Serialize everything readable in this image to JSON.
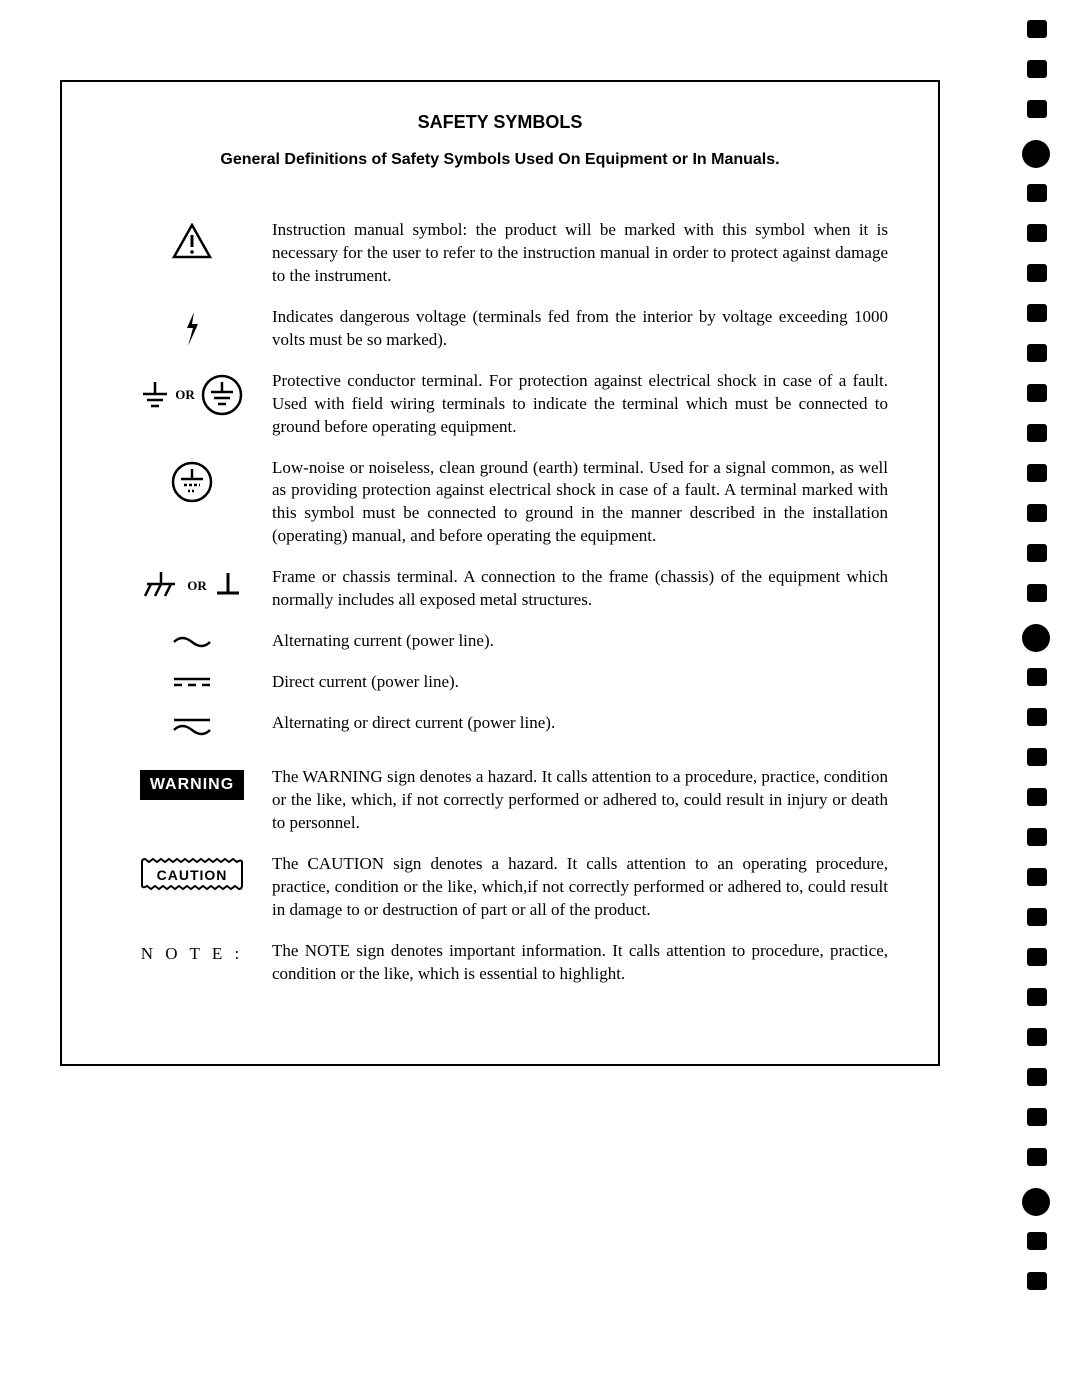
{
  "title": "SAFETY SYMBOLS",
  "subtitle": "General Definitions of Safety Symbols Used On Equipment or In Manuals.",
  "rows": [
    {
      "desc": "Instruction manual symbol: the product will be marked with this symbol when it is necessary for the user to refer to the instruction manual in order to protect against damage to the instrument."
    },
    {
      "desc": "Indicates dangerous voltage (terminals fed from the interior by voltage exceeding 1000 volts must be so marked)."
    },
    {
      "desc": "Protective conductor terminal. For protection against electrical shock in case of a fault. Used with field wiring terminals to indicate the terminal which must be connected to ground before operating equipment."
    },
    {
      "desc": "Low-noise or noiseless, clean ground (earth) terminal. Used for a signal common, as well as providing protection against electrical shock in case of a fault. A terminal marked with this symbol must be connected to ground in the manner described in the installation (operating) manual, and before operating the equipment."
    },
    {
      "desc": "Frame or chassis terminal. A connection to the frame (chassis) of the equipment which normally includes all exposed metal structures."
    },
    {
      "desc": "Alternating current (power line)."
    },
    {
      "desc": "Direct current (power line)."
    },
    {
      "desc": "Alternating or direct current (power line)."
    },
    {
      "desc": "The WARNING sign denotes a hazard. It calls attention to a procedure, practice, condition or the like, which, if not correctly performed or adhered to, could result in injury or death to personnel."
    },
    {
      "desc": "The CAUTION sign denotes a hazard. It calls attention to an operating procedure, practice, condition or the like, which,if not correctly performed or adhered to, could result in damage to or destruction of part or all of the product."
    },
    {
      "desc": "The NOTE sign denotes important information. It calls attention to procedure, practice, condition or the like, which is essential to highlight."
    }
  ],
  "labels": {
    "or": "OR",
    "warning": "WARNING",
    "caution": "CAUTION",
    "note": "N O T E :"
  },
  "holes": {
    "count": 32,
    "big_positions": [
      3,
      15,
      29
    ]
  }
}
